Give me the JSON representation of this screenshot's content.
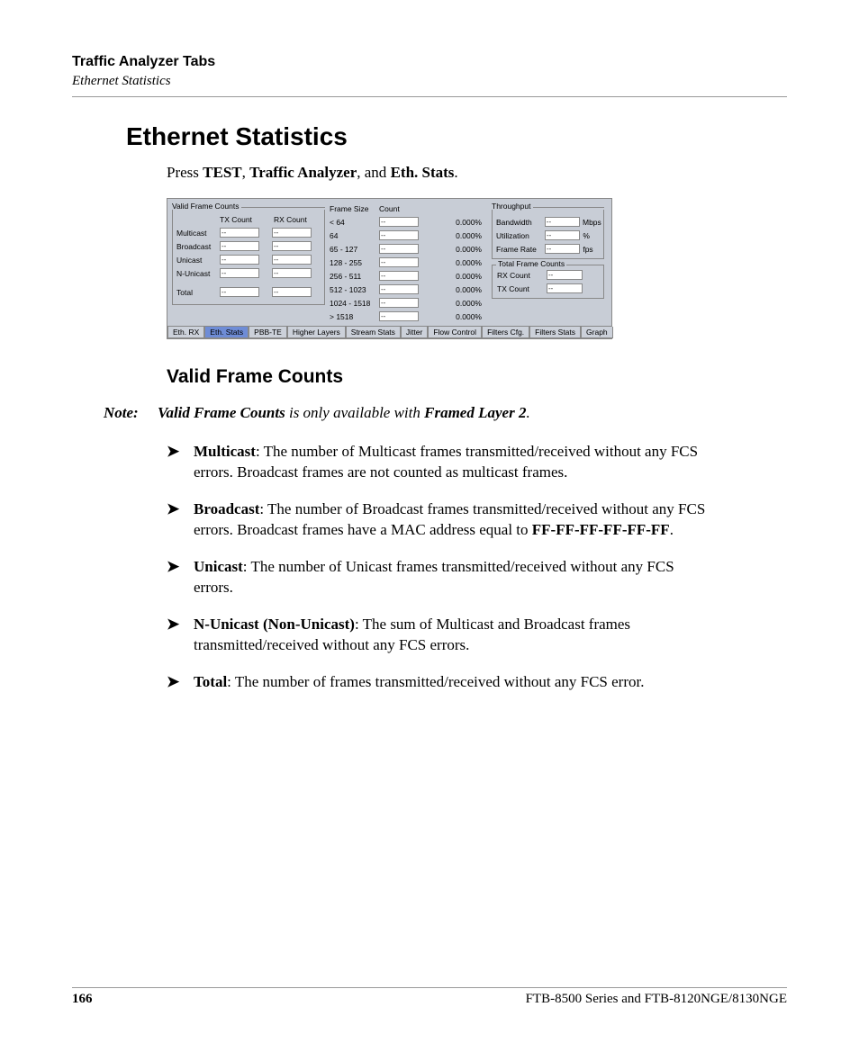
{
  "header": {
    "chapter": "Traffic Analyzer Tabs",
    "section": "Ethernet Statistics"
  },
  "main_heading": "Ethernet Statistics",
  "intro": {
    "pre": "Press ",
    "b1": "TEST",
    "sep1": ", ",
    "b2": "Traffic Analyzer",
    "sep2": ", and ",
    "b3": "Eth. Stats",
    "post": "."
  },
  "screenshot": {
    "valid_frame": {
      "title": "Valid Frame Counts",
      "tx_hdr": "TX Count",
      "rx_hdr": "RX Count",
      "rows": [
        {
          "label": "Multicast",
          "tx": "--",
          "rx": "--"
        },
        {
          "label": "Broadcast",
          "tx": "--",
          "rx": "--"
        },
        {
          "label": "Unicast",
          "tx": "--",
          "rx": "--"
        },
        {
          "label": "N-Unicast",
          "tx": "--",
          "rx": "--"
        },
        {
          "label": "Total",
          "tx": "--",
          "rx": "--"
        }
      ]
    },
    "frame_size": {
      "h1": "Frame Size",
      "h2": "Count",
      "rows": [
        {
          "label": "< 64",
          "v": "--",
          "pct": "0.000%"
        },
        {
          "label": "64",
          "v": "--",
          "pct": "0.000%"
        },
        {
          "label": "65 - 127",
          "v": "--",
          "pct": "0.000%"
        },
        {
          "label": "128 - 255",
          "v": "--",
          "pct": "0.000%"
        },
        {
          "label": "256 - 511",
          "v": "--",
          "pct": "0.000%"
        },
        {
          "label": "512 - 1023",
          "v": "--",
          "pct": "0.000%"
        },
        {
          "label": "1024 - 1518",
          "v": "--",
          "pct": "0.000%"
        },
        {
          "label": "> 1518",
          "v": "--",
          "pct": "0.000%"
        }
      ]
    },
    "throughput": {
      "title": "Throughput",
      "rows": [
        {
          "label": "Bandwidth",
          "v": "--",
          "unit": "Mbps"
        },
        {
          "label": "Utilization",
          "v": "--",
          "unit": "%"
        },
        {
          "label": "Frame Rate",
          "v": "--",
          "unit": "fps"
        }
      ]
    },
    "total_frame": {
      "title": "Total Frame Counts",
      "rows": [
        {
          "label": "RX Count",
          "v": "--"
        },
        {
          "label": "TX Count",
          "v": "--"
        }
      ]
    },
    "tabs": [
      "Eth. RX",
      "Eth. Stats",
      "PBB-TE",
      "Higher Layers",
      "Stream Stats",
      "Jitter",
      "Flow Control",
      "Filters Cfg.",
      "Filters Stats",
      "Graph"
    ],
    "active_tab": 1
  },
  "sub_heading": "Valid Frame Counts",
  "note": {
    "label": "Note:",
    "b1": "Valid Frame Counts",
    "mid": " is only available with ",
    "b2": "Framed Layer 2",
    "post": "."
  },
  "bullets": [
    {
      "term": "Multicast",
      "text": ": The number of Multicast frames transmitted/received without any FCS errors. Broadcast frames are not counted as multicast frames."
    },
    {
      "term": "Broadcast",
      "text_a": ": The number of Broadcast frames transmitted/received without any FCS errors. Broadcast frames have a MAC address equal to ",
      "mac": "FF-FF-FF-FF-FF-FF",
      "text_b": "."
    },
    {
      "term": "Unicast",
      "text": ": The number of Unicast frames transmitted/received without any FCS errors."
    },
    {
      "term": "N-Unicast (Non-Unicast)",
      "text": ": The sum of Multicast and Broadcast frames transmitted/received without any FCS errors."
    },
    {
      "term": "Total",
      "text": ": The number of frames transmitted/received without any FCS error."
    }
  ],
  "footer": {
    "page": "166",
    "doc": "FTB-8500 Series and FTB-8120NGE/8130NGE"
  },
  "marker": "➤"
}
